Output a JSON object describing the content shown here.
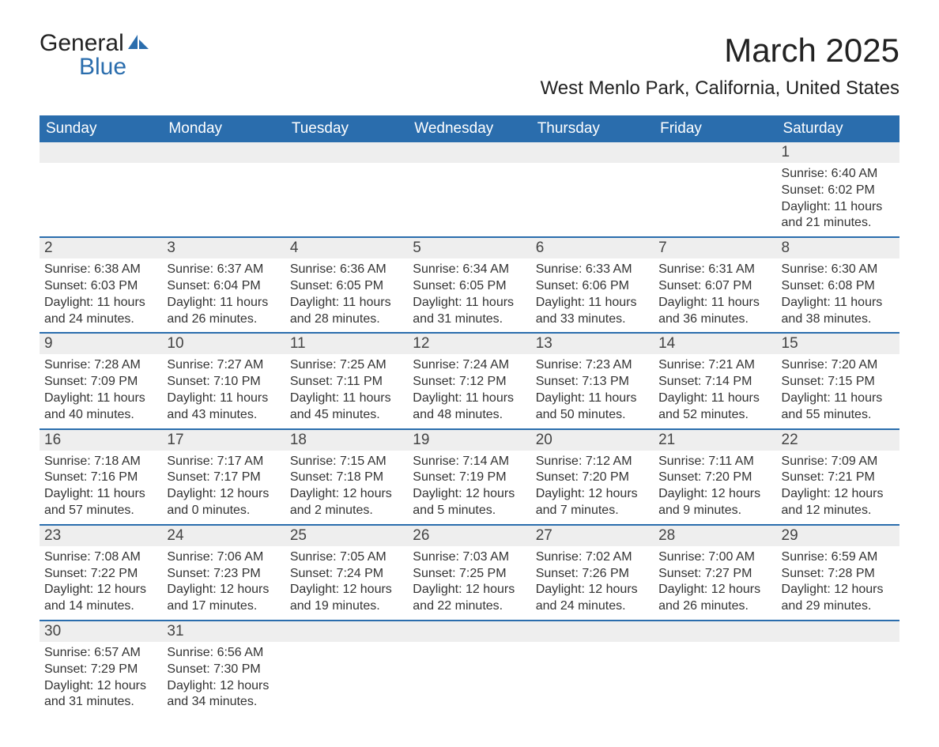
{
  "logo": {
    "text1": "General",
    "text2": "Blue"
  },
  "title": "March 2025",
  "location": "West Menlo Park, California, United States",
  "colors": {
    "header_bg": "#2a6dad",
    "header_text": "#ffffff",
    "daynum_bg": "#eeeeee",
    "border": "#2a6dad",
    "text": "#333333"
  },
  "dayHeaders": [
    "Sunday",
    "Monday",
    "Tuesday",
    "Wednesday",
    "Thursday",
    "Friday",
    "Saturday"
  ],
  "weeks": [
    [
      null,
      null,
      null,
      null,
      null,
      null,
      {
        "n": "1",
        "sr": "6:40 AM",
        "ss": "6:02 PM",
        "dl": "11 hours and 21 minutes."
      }
    ],
    [
      {
        "n": "2",
        "sr": "6:38 AM",
        "ss": "6:03 PM",
        "dl": "11 hours and 24 minutes."
      },
      {
        "n": "3",
        "sr": "6:37 AM",
        "ss": "6:04 PM",
        "dl": "11 hours and 26 minutes."
      },
      {
        "n": "4",
        "sr": "6:36 AM",
        "ss": "6:05 PM",
        "dl": "11 hours and 28 minutes."
      },
      {
        "n": "5",
        "sr": "6:34 AM",
        "ss": "6:05 PM",
        "dl": "11 hours and 31 minutes."
      },
      {
        "n": "6",
        "sr": "6:33 AM",
        "ss": "6:06 PM",
        "dl": "11 hours and 33 minutes."
      },
      {
        "n": "7",
        "sr": "6:31 AM",
        "ss": "6:07 PM",
        "dl": "11 hours and 36 minutes."
      },
      {
        "n": "8",
        "sr": "6:30 AM",
        "ss": "6:08 PM",
        "dl": "11 hours and 38 minutes."
      }
    ],
    [
      {
        "n": "9",
        "sr": "7:28 AM",
        "ss": "7:09 PM",
        "dl": "11 hours and 40 minutes."
      },
      {
        "n": "10",
        "sr": "7:27 AM",
        "ss": "7:10 PM",
        "dl": "11 hours and 43 minutes."
      },
      {
        "n": "11",
        "sr": "7:25 AM",
        "ss": "7:11 PM",
        "dl": "11 hours and 45 minutes."
      },
      {
        "n": "12",
        "sr": "7:24 AM",
        "ss": "7:12 PM",
        "dl": "11 hours and 48 minutes."
      },
      {
        "n": "13",
        "sr": "7:23 AM",
        "ss": "7:13 PM",
        "dl": "11 hours and 50 minutes."
      },
      {
        "n": "14",
        "sr": "7:21 AM",
        "ss": "7:14 PM",
        "dl": "11 hours and 52 minutes."
      },
      {
        "n": "15",
        "sr": "7:20 AM",
        "ss": "7:15 PM",
        "dl": "11 hours and 55 minutes."
      }
    ],
    [
      {
        "n": "16",
        "sr": "7:18 AM",
        "ss": "7:16 PM",
        "dl": "11 hours and 57 minutes."
      },
      {
        "n": "17",
        "sr": "7:17 AM",
        "ss": "7:17 PM",
        "dl": "12 hours and 0 minutes."
      },
      {
        "n": "18",
        "sr": "7:15 AM",
        "ss": "7:18 PM",
        "dl": "12 hours and 2 minutes."
      },
      {
        "n": "19",
        "sr": "7:14 AM",
        "ss": "7:19 PM",
        "dl": "12 hours and 5 minutes."
      },
      {
        "n": "20",
        "sr": "7:12 AM",
        "ss": "7:20 PM",
        "dl": "12 hours and 7 minutes."
      },
      {
        "n": "21",
        "sr": "7:11 AM",
        "ss": "7:20 PM",
        "dl": "12 hours and 9 minutes."
      },
      {
        "n": "22",
        "sr": "7:09 AM",
        "ss": "7:21 PM",
        "dl": "12 hours and 12 minutes."
      }
    ],
    [
      {
        "n": "23",
        "sr": "7:08 AM",
        "ss": "7:22 PM",
        "dl": "12 hours and 14 minutes."
      },
      {
        "n": "24",
        "sr": "7:06 AM",
        "ss": "7:23 PM",
        "dl": "12 hours and 17 minutes."
      },
      {
        "n": "25",
        "sr": "7:05 AM",
        "ss": "7:24 PM",
        "dl": "12 hours and 19 minutes."
      },
      {
        "n": "26",
        "sr": "7:03 AM",
        "ss": "7:25 PM",
        "dl": "12 hours and 22 minutes."
      },
      {
        "n": "27",
        "sr": "7:02 AM",
        "ss": "7:26 PM",
        "dl": "12 hours and 24 minutes."
      },
      {
        "n": "28",
        "sr": "7:00 AM",
        "ss": "7:27 PM",
        "dl": "12 hours and 26 minutes."
      },
      {
        "n": "29",
        "sr": "6:59 AM",
        "ss": "7:28 PM",
        "dl": "12 hours and 29 minutes."
      }
    ],
    [
      {
        "n": "30",
        "sr": "6:57 AM",
        "ss": "7:29 PM",
        "dl": "12 hours and 31 minutes."
      },
      {
        "n": "31",
        "sr": "6:56 AM",
        "ss": "7:30 PM",
        "dl": "12 hours and 34 minutes."
      },
      null,
      null,
      null,
      null,
      null
    ]
  ],
  "labels": {
    "sunrise": "Sunrise:",
    "sunset": "Sunset:",
    "daylight": "Daylight:"
  }
}
